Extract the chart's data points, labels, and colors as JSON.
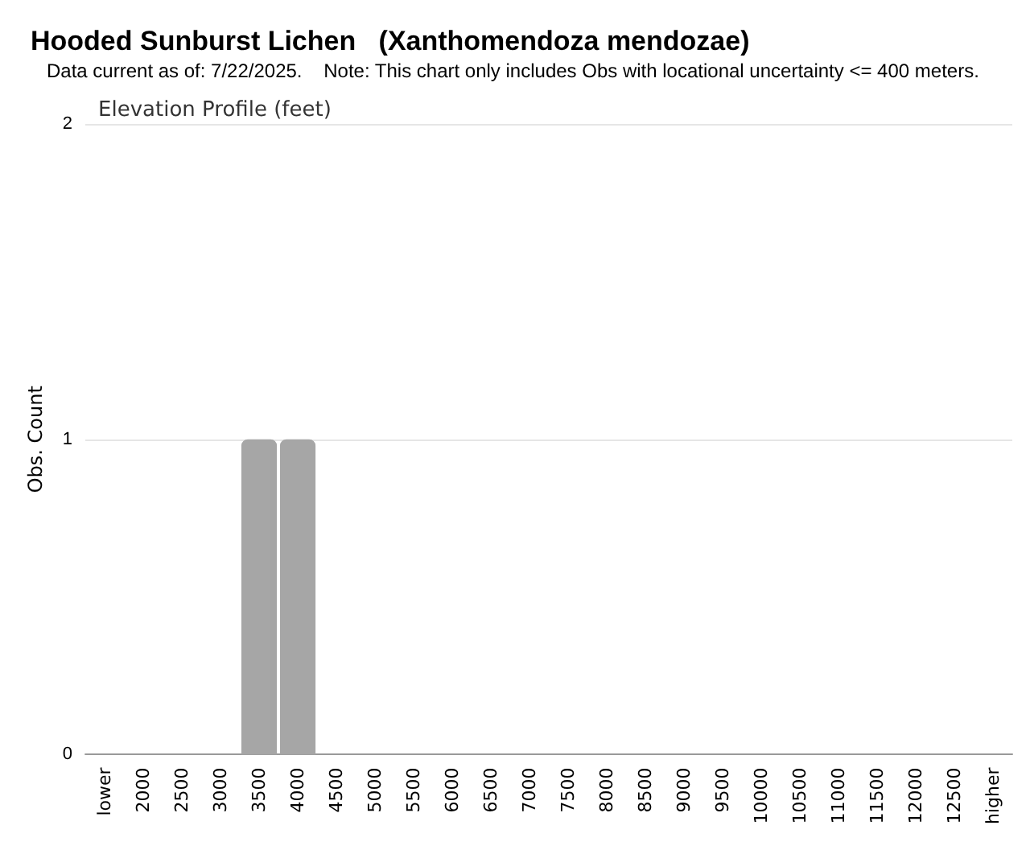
{
  "chart_data": {
    "type": "bar",
    "title": "Hooded Sunburst Lichen   (Xanthomendoza mendozae)",
    "subtitle": "Data current as of: 7/22/2025.    Note: This chart only includes Obs with locational uncertainty <= 400 meters.",
    "annotations": [
      "Elevation Profile (feet)"
    ],
    "ylabel": "Obs. Count",
    "categories": [
      "lower",
      "2000",
      "2500",
      "3000",
      "3500",
      "4000",
      "4500",
      "5000",
      "5500",
      "6000",
      "6500",
      "7000",
      "7500",
      "8000",
      "8500",
      "9000",
      "9500",
      "10000",
      "10500",
      "11000",
      "11500",
      "12000",
      "12500",
      "higher"
    ],
    "values": [
      0,
      0,
      0,
      0,
      1,
      1,
      0,
      0,
      0,
      0,
      0,
      0,
      0,
      0,
      0,
      0,
      0,
      0,
      0,
      0,
      0,
      0,
      0,
      0
    ],
    "color": "#a6a6a6",
    "ylim": [
      0,
      2
    ],
    "yticks": [
      0,
      1,
      2
    ],
    "grid": "y"
  }
}
